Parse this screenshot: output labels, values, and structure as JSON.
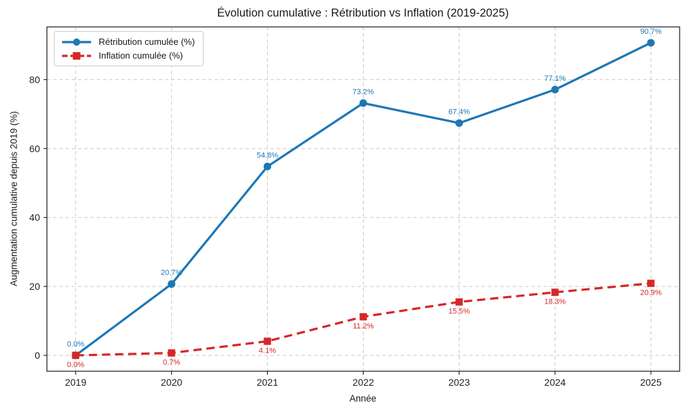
{
  "chart_data": {
    "type": "line",
    "title": "Évolution cumulative : Rétribution vs Inflation (2019-2025)",
    "xlabel": "Année",
    "ylabel": "Augmentation cumulative depuis 2019 (%)",
    "categories": [
      2019,
      2020,
      2021,
      2022,
      2023,
      2024,
      2025
    ],
    "yticks": [
      0,
      20,
      40,
      60,
      80
    ],
    "xlim": [
      2018.7,
      2025.3
    ],
    "ylim": [
      -4.6,
      95.3
    ],
    "grid": true,
    "grid_style": "dashed",
    "legend_position": "upper-left",
    "series": [
      {
        "name": "Rétribution cumulée (%)",
        "color": "#1f77b4",
        "marker": "circle",
        "line_style": "solid",
        "values": [
          0.0,
          20.7,
          54.8,
          73.2,
          67.4,
          77.1,
          90.7
        ],
        "point_labels": [
          "0.0%",
          "20.7%",
          "54.8%",
          "73.2%",
          "67.4%",
          "77.1%",
          "90.7%"
        ],
        "label_position": "above"
      },
      {
        "name": "Inflation cumulée (%)",
        "color": "#d62728",
        "marker": "square",
        "line_style": "dashed",
        "values": [
          0.0,
          0.7,
          4.1,
          11.2,
          15.5,
          18.3,
          20.9
        ],
        "point_labels": [
          "0.0%",
          "0.7%",
          "4.1%",
          "11.2%",
          "15.5%",
          "18.3%",
          "20.9%"
        ],
        "label_position": "below"
      }
    ],
    "colors": {
      "grid": "#c9c9c9",
      "spine": "#2b2b2b",
      "text": "#1f1f1f"
    }
  }
}
